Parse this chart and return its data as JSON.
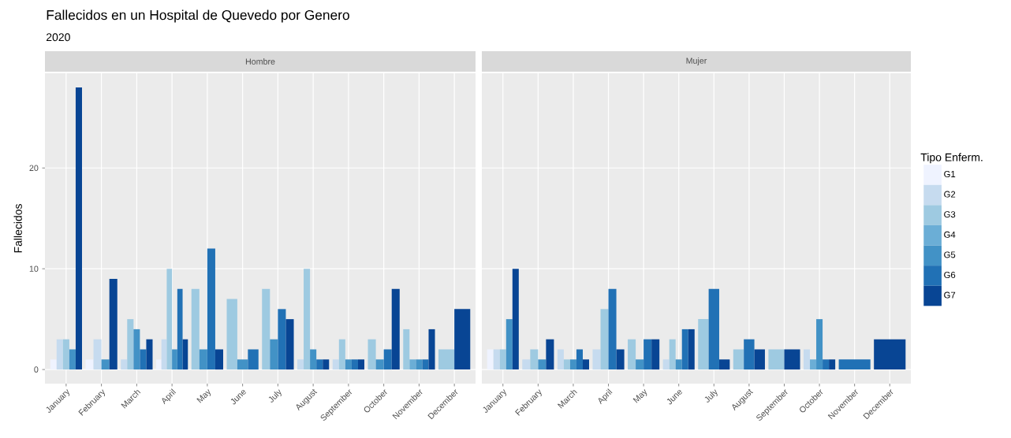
{
  "chart_data": [
    {
      "type": "bar",
      "title": "Fallecidos en un Hospital de Quevedo por Genero",
      "subtitle": "2020",
      "annotations": [
        "Hombre"
      ],
      "ylabel": "Fallecidos",
      "categories": [
        "January",
        "February",
        "March",
        "April",
        "May",
        "June",
        "July",
        "August",
        "September",
        "October",
        "November",
        "December"
      ],
      "series": [
        {
          "color": "#eff3ff",
          "values": [
            1,
            1,
            null,
            1,
            null,
            null,
            null,
            null,
            null,
            null,
            null,
            null
          ]
        },
        {
          "color": "#c6dbef",
          "values": [
            3,
            3,
            1,
            3,
            null,
            null,
            null,
            1,
            1,
            null,
            null,
            null
          ]
        },
        {
          "color": "#9ecae1",
          "values": [
            3,
            null,
            5,
            10,
            8,
            7,
            8,
            10,
            3,
            3,
            4,
            2
          ]
        },
        {
          "color": "#6baed6",
          "values": [
            null,
            null,
            null,
            null,
            null,
            null,
            null,
            null,
            null,
            null,
            1,
            null
          ]
        },
        {
          "color": "#4292c6",
          "values": [
            2,
            1,
            4,
            2,
            2,
            1,
            3,
            2,
            1,
            1,
            1,
            null
          ]
        },
        {
          "color": "#2171b5",
          "values": [
            null,
            null,
            2,
            8,
            12,
            2,
            6,
            1,
            1,
            2,
            1,
            null
          ]
        },
        {
          "color": "#084594",
          "values": [
            28,
            9,
            3,
            3,
            2,
            null,
            5,
            1,
            1,
            8,
            4,
            6
          ]
        }
      ],
      "ylim": [
        -1.4,
        29.4
      ],
      "yticks": [
        0,
        10,
        20
      ],
      "grid": true
    },
    {
      "type": "bar",
      "annotations": [
        "Mujer"
      ],
      "legend_title": "Tipo Enferm.",
      "legend": "right",
      "tick_labels": "x",
      "categories": [
        "January",
        "February",
        "March",
        "April",
        "May",
        "June",
        "July",
        "August",
        "September",
        "October",
        "November",
        "December"
      ],
      "series": [
        {
          "name": "G1",
          "color": "#eff3ff",
          "values": [
            2,
            null,
            null,
            null,
            null,
            null,
            null,
            null,
            null,
            null,
            null,
            null
          ]
        },
        {
          "name": "G2",
          "color": "#c6dbef",
          "values": [
            2,
            1,
            2,
            2,
            null,
            1,
            null,
            null,
            null,
            2,
            null,
            null
          ]
        },
        {
          "name": "G3",
          "color": "#9ecae1",
          "values": [
            2,
            2,
            1,
            6,
            3,
            3,
            5,
            2,
            2,
            null,
            null,
            null
          ]
        },
        {
          "name": "G4",
          "color": "#6baed6",
          "values": [
            null,
            null,
            null,
            null,
            null,
            null,
            null,
            null,
            null,
            1,
            null,
            null
          ]
        },
        {
          "name": "G5",
          "color": "#4292c6",
          "values": [
            5,
            1,
            1,
            null,
            1,
            1,
            null,
            null,
            null,
            5,
            null,
            null
          ]
        },
        {
          "name": "G6",
          "color": "#2171b5",
          "values": [
            null,
            null,
            2,
            8,
            3,
            4,
            8,
            3,
            null,
            1,
            1,
            null
          ]
        },
        {
          "name": "G7",
          "color": "#084594",
          "values": [
            10,
            3,
            1,
            2,
            3,
            4,
            1,
            2,
            2,
            1,
            null,
            3
          ]
        }
      ],
      "ylim": [
        -1.4,
        29.4
      ],
      "yticks": [
        0,
        10,
        20
      ],
      "grid": true
    }
  ]
}
